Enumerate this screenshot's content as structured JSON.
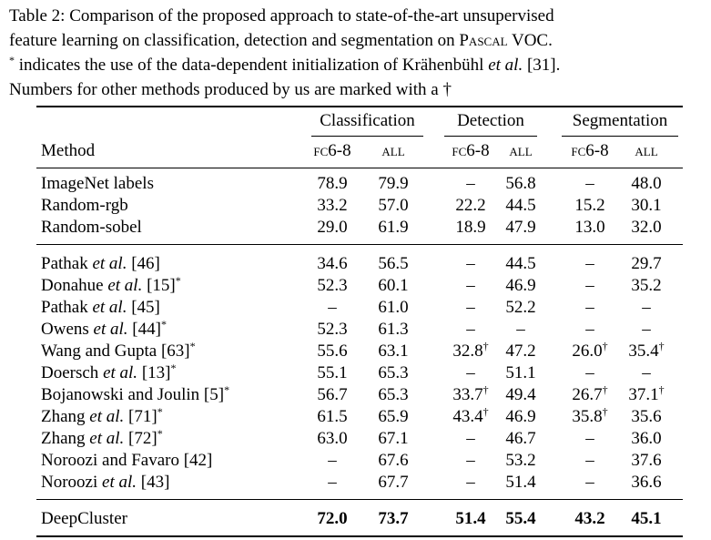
{
  "caption": {
    "line1": "Table 2: Comparison of the proposed approach to state-of-the-art unsupervised",
    "line2a": "feature learning on classification, detection and segmentation on",
    "line2b": "Pascal",
    "line2c": "VOC.",
    "line3a": "*",
    "line3b": "indicates the use of the data-dependent initialization of Krähenbühl",
    "line3c": "et al.",
    "line3d": "[31].",
    "line4": "Numbers for other methods produced by us are marked with a †"
  },
  "table": {
    "method_header": "Method",
    "groups": [
      {
        "name": "Classification",
        "columns": [
          "fc6-8",
          "all"
        ]
      },
      {
        "name": "Detection",
        "columns": [
          "fc6-8",
          "all"
        ]
      },
      {
        "name": "Segmentation",
        "columns": [
          "fc6-8",
          "all"
        ]
      }
    ],
    "sections": [
      [
        {
          "method": {
            "before": "ImageNet labels"
          },
          "cells": [
            78.9,
            79.9,
            "–",
            56.8,
            "–",
            48.0
          ]
        },
        {
          "method": {
            "before": "Random-rgb"
          },
          "cells": [
            33.2,
            57.0,
            22.2,
            44.5,
            15.2,
            30.1
          ]
        },
        {
          "method": {
            "before": "Random-sobel"
          },
          "cells": [
            29.0,
            61.9,
            18.9,
            47.9,
            13.0,
            32.0
          ]
        }
      ],
      [
        {
          "method": {
            "before": "Pathak",
            "italic": "et al.",
            "after": "[46]"
          },
          "cells": [
            34.6,
            56.5,
            "–",
            44.5,
            "–",
            29.7
          ]
        },
        {
          "method": {
            "before": "Donahue",
            "italic": "et al.",
            "after": "[15]",
            "sup": "*"
          },
          "cells": [
            52.3,
            60.1,
            "–",
            46.9,
            "–",
            35.2
          ]
        },
        {
          "method": {
            "before": "Pathak",
            "italic": "et al.",
            "after": "[45]"
          },
          "cells": [
            "–",
            61.0,
            "–",
            52.2,
            "–",
            "–"
          ]
        },
        {
          "method": {
            "before": "Owens",
            "italic": "et al.",
            "after": "[44]",
            "sup": "*"
          },
          "cells": [
            52.3,
            61.3,
            "–",
            "–",
            "–",
            "–"
          ]
        },
        {
          "method": {
            "before": "Wang and Gupta",
            "after": "[63]",
            "sup": "*"
          },
          "cells": [
            55.6,
            63.1,
            {
              "value": 32.8,
              "sup": "†"
            },
            47.2,
            {
              "value": 26.0,
              "sup": "†"
            },
            {
              "value": 35.4,
              "sup": "†"
            }
          ]
        },
        {
          "method": {
            "before": "Doersch",
            "italic": "et al.",
            "after": "[13]",
            "sup": "*"
          },
          "cells": [
            55.1,
            65.3,
            "–",
            51.1,
            "–",
            "–"
          ]
        },
        {
          "method": {
            "before": "Bojanowski and Joulin",
            "after": "[5]",
            "sup": "*"
          },
          "cells": [
            56.7,
            65.3,
            {
              "value": 33.7,
              "sup": "†"
            },
            49.4,
            {
              "value": 26.7,
              "sup": "†"
            },
            {
              "value": 37.1,
              "sup": "†"
            }
          ]
        },
        {
          "method": {
            "before": "Zhang",
            "italic": "et al.",
            "after": "[71]",
            "sup": "*"
          },
          "cells": [
            61.5,
            65.9,
            {
              "value": 43.4,
              "sup": "†"
            },
            46.9,
            {
              "value": 35.8,
              "sup": "†"
            },
            35.6
          ]
        },
        {
          "method": {
            "before": "Zhang",
            "italic": "et al.",
            "after": "[72]",
            "sup": "*"
          },
          "cells": [
            63.0,
            67.1,
            "–",
            46.7,
            "–",
            36.0
          ]
        },
        {
          "method": {
            "before": "Noroozi and Favaro",
            "after": "[42]"
          },
          "cells": [
            "–",
            67.6,
            "–",
            53.2,
            "–",
            37.6
          ]
        },
        {
          "method": {
            "before": "Noroozi",
            "italic": "et al.",
            "after": "[43]"
          },
          "cells": [
            "–",
            67.7,
            "–",
            51.4,
            "–",
            36.6
          ]
        }
      ],
      [
        {
          "method": {
            "before": "DeepCluster"
          },
          "bold": true,
          "cells": [
            72.0,
            73.7,
            51.4,
            55.4,
            43.2,
            45.1
          ]
        }
      ]
    ]
  }
}
